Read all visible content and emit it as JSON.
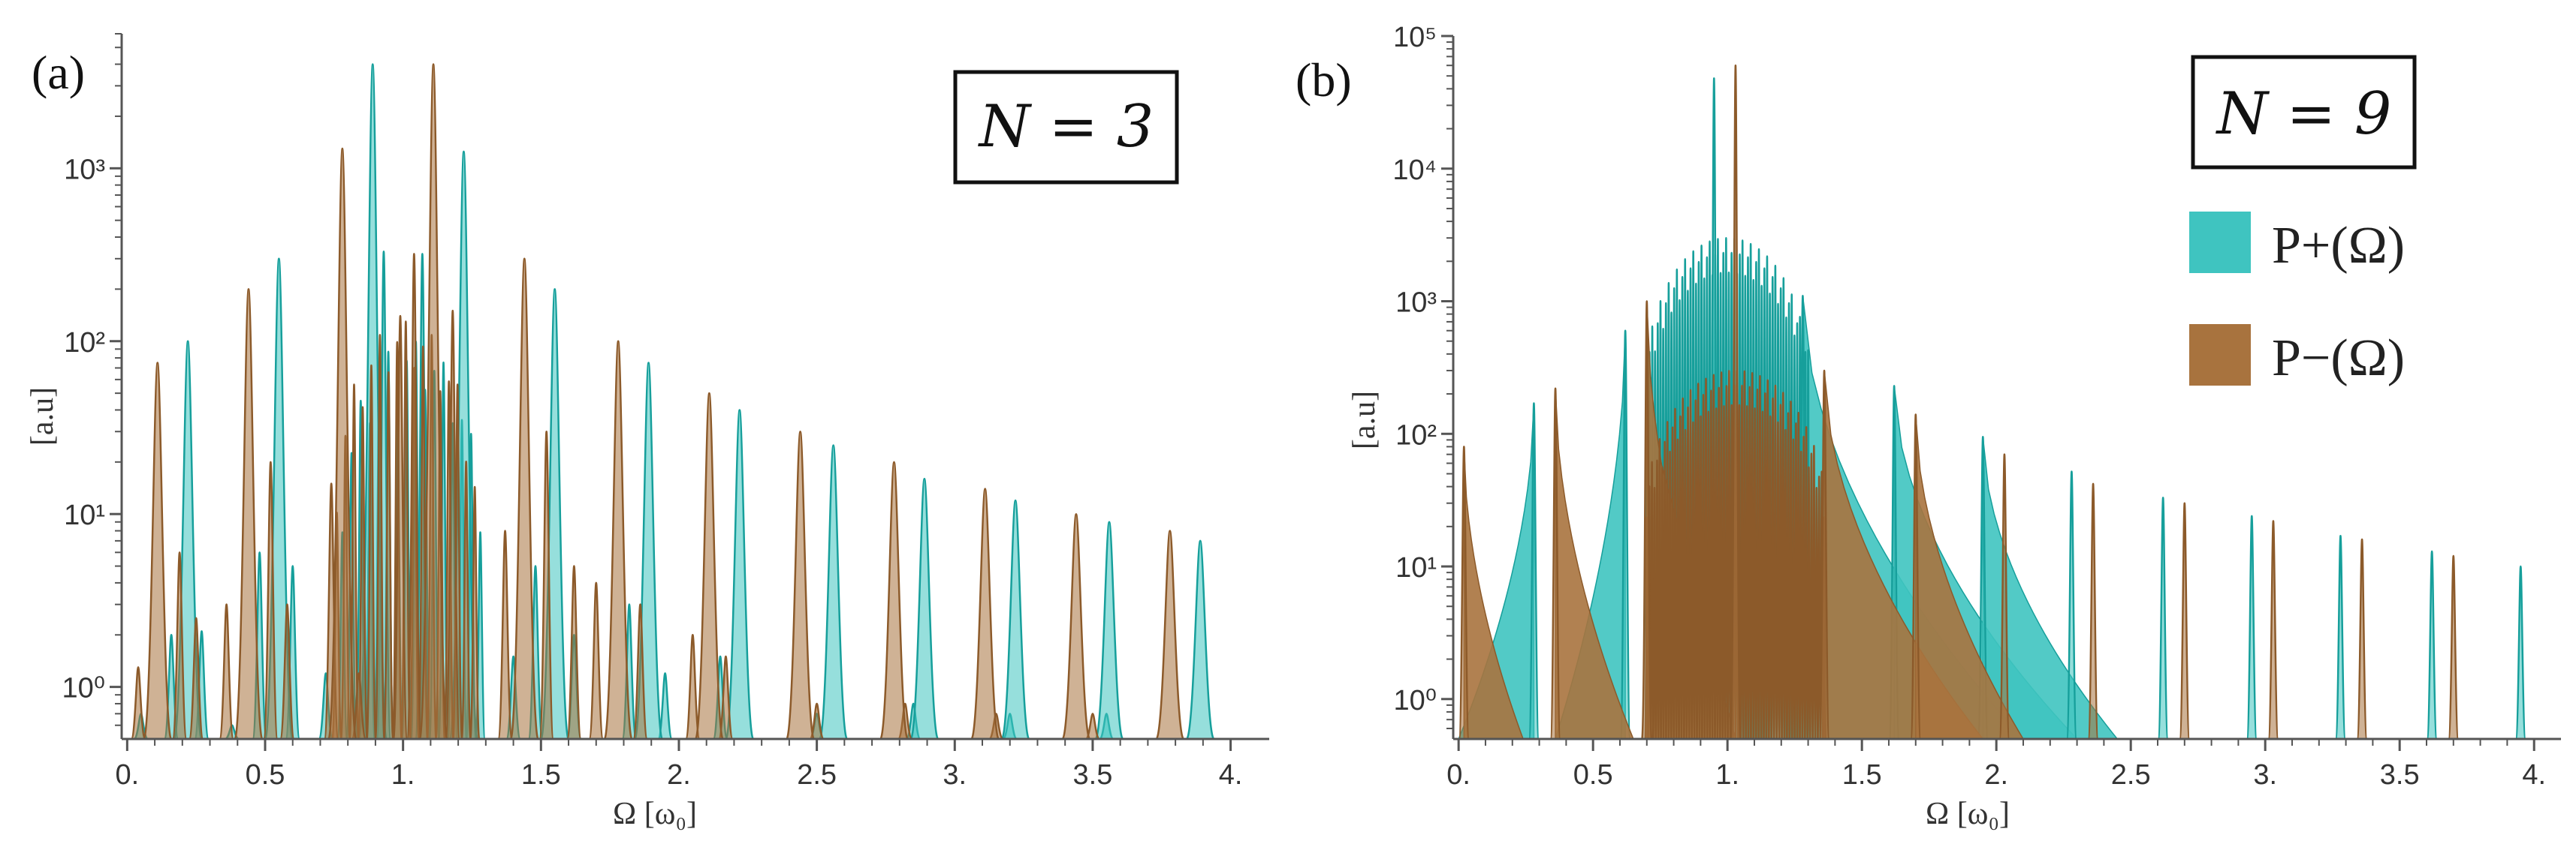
{
  "colors": {
    "plus": "#3fc4c0",
    "plus_edge": "#169f9b",
    "minus": "#a8733e",
    "minus_edge": "#8c5a2a"
  },
  "chart_data": [
    {
      "type": "area",
      "panel_label": "(a)",
      "box_label": "N = 3",
      "xlabel": "Ω [ω₀]",
      "ylabel": "[a.u]",
      "yscale": "log",
      "xlim": [
        -0.02,
        4.14
      ],
      "ylim": [
        0.5,
        6000
      ],
      "x_ticks": [
        "0.",
        "0.5",
        "1.",
        "1.5",
        "2.",
        "2.5",
        "3.",
        "3.5",
        "4."
      ],
      "y_ticks": [
        "10⁰",
        "10¹",
        "10²",
        "10³"
      ],
      "legend": [],
      "series": [
        {
          "name": "P+(Ω)",
          "color_key": "plus",
          "main_peaks": [
            {
              "x": 0.22,
              "y": 100
            },
            {
              "x": 0.55,
              "y": 300
            },
            {
              "x": 0.89,
              "y": 4000
            },
            {
              "x": 1.22,
              "y": 1250
            },
            {
              "x": 1.55,
              "y": 200
            },
            {
              "x": 1.89,
              "y": 75
            },
            {
              "x": 2.22,
              "y": 40
            },
            {
              "x": 2.56,
              "y": 25
            },
            {
              "x": 2.89,
              "y": 16
            },
            {
              "x": 3.22,
              "y": 12
            },
            {
              "x": 3.56,
              "y": 9
            },
            {
              "x": 3.89,
              "y": 7
            }
          ],
          "dense_band": {
            "from": 0.78,
            "to": 1.28,
            "count": 16,
            "top": 100,
            "bottom": 1
          },
          "minor_peaks": [
            {
              "x": 0.05,
              "y": 0.7
            },
            {
              "x": 0.16,
              "y": 2
            },
            {
              "x": 0.27,
              "y": 2.1
            },
            {
              "x": 0.38,
              "y": 0.6
            },
            {
              "x": 0.48,
              "y": 6
            },
            {
              "x": 0.6,
              "y": 5
            },
            {
              "x": 0.72,
              "y": 1.2
            },
            {
              "x": 0.93,
              "y": 330
            },
            {
              "x": 1.07,
              "y": 320
            },
            {
              "x": 1.4,
              "y": 1.5
            },
            {
              "x": 1.48,
              "y": 5
            },
            {
              "x": 1.62,
              "y": 2
            },
            {
              "x": 1.82,
              "y": 3
            },
            {
              "x": 1.95,
              "y": 1.2
            },
            {
              "x": 2.15,
              "y": 1.5
            },
            {
              "x": 2.5,
              "y": 0.7
            },
            {
              "x": 2.85,
              "y": 0.8
            },
            {
              "x": 3.2,
              "y": 0.7
            },
            {
              "x": 3.55,
              "y": 0.7
            }
          ]
        },
        {
          "name": "P−(Ω)",
          "color_key": "minus",
          "main_peaks": [
            {
              "x": 0.11,
              "y": 75
            },
            {
              "x": 0.44,
              "y": 200
            },
            {
              "x": 0.78,
              "y": 1300
            },
            {
              "x": 1.11,
              "y": 4000
            },
            {
              "x": 1.44,
              "y": 300
            },
            {
              "x": 1.78,
              "y": 100
            },
            {
              "x": 2.11,
              "y": 50
            },
            {
              "x": 2.44,
              "y": 30
            },
            {
              "x": 2.78,
              "y": 20
            },
            {
              "x": 3.11,
              "y": 14
            },
            {
              "x": 3.44,
              "y": 10
            },
            {
              "x": 3.78,
              "y": 8
            }
          ],
          "dense_band": {
            "from": 0.76,
            "to": 1.26,
            "count": 17,
            "top": 130,
            "bottom": 1
          },
          "minor_peaks": [
            {
              "x": 0.04,
              "y": 1.3
            },
            {
              "x": 0.19,
              "y": 6
            },
            {
              "x": 0.25,
              "y": 2.5
            },
            {
              "x": 0.36,
              "y": 3
            },
            {
              "x": 0.52,
              "y": 20
            },
            {
              "x": 0.58,
              "y": 3
            },
            {
              "x": 0.74,
              "y": 15
            },
            {
              "x": 0.84,
              "y": 1.2
            },
            {
              "x": 0.99,
              "y": 140
            },
            {
              "x": 1.04,
              "y": 320
            },
            {
              "x": 1.18,
              "y": 150
            },
            {
              "x": 1.37,
              "y": 8
            },
            {
              "x": 1.52,
              "y": 30
            },
            {
              "x": 1.62,
              "y": 5
            },
            {
              "x": 1.7,
              "y": 4
            },
            {
              "x": 1.86,
              "y": 3
            },
            {
              "x": 2.05,
              "y": 2
            },
            {
              "x": 2.17,
              "y": 1.5
            },
            {
              "x": 2.5,
              "y": 0.8
            },
            {
              "x": 2.82,
              "y": 0.8
            },
            {
              "x": 3.15,
              "y": 0.7
            },
            {
              "x": 3.5,
              "y": 0.7
            }
          ]
        }
      ]
    },
    {
      "type": "area",
      "panel_label": "(b)",
      "box_label": "N = 9",
      "xlabel": "Ω [ω₀]",
      "ylabel": "[a.u]",
      "yscale": "log",
      "xlim": [
        -0.02,
        4.1
      ],
      "ylim": [
        0.5,
        100000
      ],
      "x_ticks": [
        "0.",
        "0.5",
        "1.",
        "1.5",
        "2.",
        "2.5",
        "3.",
        "3.5",
        "4."
      ],
      "y_ticks": [
        "10⁰",
        "10¹",
        "10²",
        "10³",
        "10⁴",
        "10⁵"
      ],
      "legend": [
        "P+(Ω)",
        "P−(Ω)"
      ],
      "series": [
        {
          "name": "P+(Ω)",
          "color_key": "plus",
          "main_peaks": [
            {
              "x": 0.28,
              "y": 170
            },
            {
              "x": 0.62,
              "y": 600
            },
            {
              "x": 0.95,
              "y": 48000
            },
            {
              "x": 1.28,
              "y": 1100
            },
            {
              "x": 1.62,
              "y": 230
            },
            {
              "x": 1.95,
              "y": 95
            },
            {
              "x": 2.28,
              "y": 52
            },
            {
              "x": 2.62,
              "y": 33
            },
            {
              "x": 2.95,
              "y": 24
            },
            {
              "x": 3.28,
              "y": 17
            },
            {
              "x": 3.62,
              "y": 13
            },
            {
              "x": 3.95,
              "y": 10
            }
          ],
          "decay": [
            {
              "peak": 0.28,
              "to": 0.0,
              "level": 1.2
            },
            {
              "peak": 0.62,
              "to": 0.36,
              "level": 1.8
            },
            {
              "peak": 1.28,
              "to": 2.1,
              "level": 40
            },
            {
              "peak": 1.62,
              "to": 2.3,
              "level": 4
            },
            {
              "peak": 1.95,
              "to": 2.45,
              "level": 2.2
            }
          ],
          "dense_band": {
            "from": 0.7,
            "to": 1.3,
            "count": 60,
            "top": 3000,
            "bottom": 1
          }
        },
        {
          "name": "P−(Ω)",
          "color_key": "minus",
          "main_peaks": [
            {
              "x": 0.02,
              "y": 80
            },
            {
              "x": 0.36,
              "y": 220
            },
            {
              "x": 0.7,
              "y": 1000
            },
            {
              "x": 1.03,
              "y": 60000
            },
            {
              "x": 1.36,
              "y": 300
            },
            {
              "x": 1.7,
              "y": 140
            },
            {
              "x": 2.03,
              "y": 70
            },
            {
              "x": 2.36,
              "y": 42
            },
            {
              "x": 2.7,
              "y": 30
            },
            {
              "x": 3.03,
              "y": 22
            },
            {
              "x": 3.36,
              "y": 16
            },
            {
              "x": 3.7,
              "y": 12
            }
          ],
          "decay": [
            {
              "peak": 0.02,
              "to": 0.24,
              "level": 1.5
            },
            {
              "peak": 0.36,
              "to": 0.65,
              "level": 4.5
            },
            {
              "peak": 0.7,
              "to": 1.03,
              "level": 150
            },
            {
              "peak": 1.36,
              "to": 1.95,
              "level": 15
            },
            {
              "peak": 1.7,
              "to": 2.1,
              "level": 6
            }
          ],
          "dense_band": {
            "from": 0.7,
            "to": 1.36,
            "count": 70,
            "top": 300,
            "bottom": 1
          }
        }
      ]
    }
  ]
}
